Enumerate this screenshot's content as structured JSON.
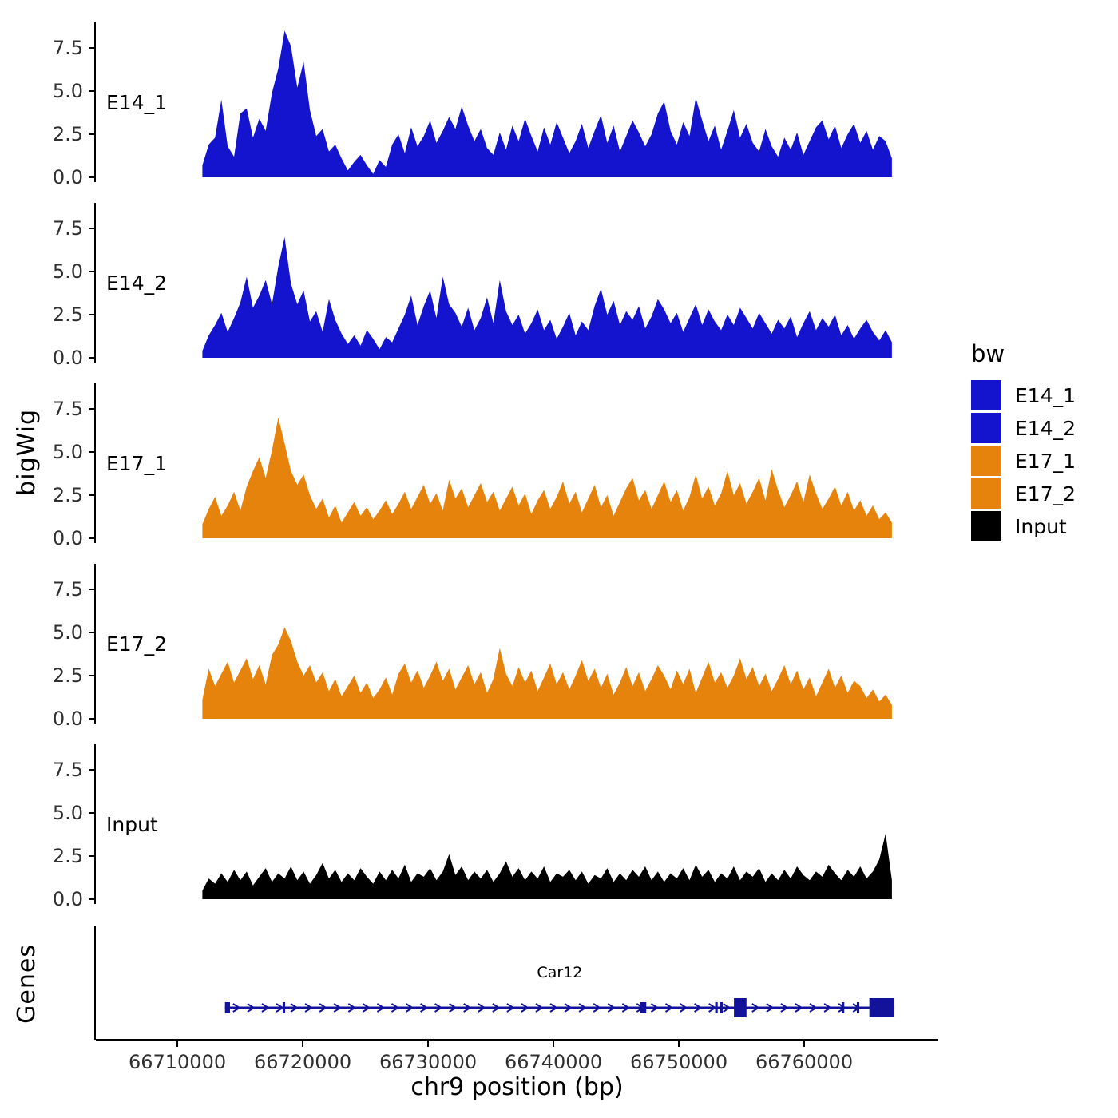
{
  "figure": {
    "y_axis_title": "bigWig",
    "genes_axis_title": "Genes",
    "x_axis_title": "chr9 position (bp)",
    "background": "#ffffff"
  },
  "legend": {
    "title": "bw",
    "items": [
      {
        "label": "E14_1",
        "color": "#1414CE"
      },
      {
        "label": "E14_2",
        "color": "#1414CE"
      },
      {
        "label": "E17_1",
        "color": "#E6830C"
      },
      {
        "label": "E17_2",
        "color": "#E6830C"
      },
      {
        "label": "Input",
        "color": "#000000"
      }
    ]
  },
  "chart_data": {
    "type": "area",
    "title": "",
    "xlabel": "chr9 position (bp)",
    "ylabel": "bigWig",
    "x_range": [
      66703500,
      66770700
    ],
    "data_range": [
      66712000,
      66767000
    ],
    "x_ticks": [
      66710000,
      66720000,
      66730000,
      66740000,
      66750000,
      66760000
    ],
    "y_ticks": [
      0.0,
      2.5,
      5.0,
      7.5
    ],
    "y_max": 9,
    "grid": false,
    "legend_position": "right",
    "tracks": [
      {
        "name": "E14_1",
        "color": "#1414CE",
        "values": [
          0.7,
          1.9,
          2.3,
          4.5,
          1.8,
          1.2,
          3.7,
          4.0,
          2.3,
          3.4,
          2.7,
          4.9,
          6.3,
          8.5,
          7.6,
          5.2,
          6.7,
          3.9,
          2.4,
          2.8,
          1.5,
          1.9,
          1.1,
          0.4,
          0.9,
          1.3,
          0.7,
          0.2,
          1.0,
          0.6,
          1.9,
          2.5,
          1.4,
          2.9,
          1.8,
          2.4,
          3.3,
          2.0,
          2.7,
          3.5,
          2.8,
          4.1,
          3.0,
          2.1,
          2.8,
          1.7,
          1.3,
          2.6,
          1.6,
          3.0,
          2.1,
          3.4,
          2.4,
          1.5,
          2.9,
          1.9,
          3.2,
          2.3,
          1.4,
          2.1,
          3.1,
          1.7,
          2.7,
          3.6,
          2.0,
          3.0,
          1.5,
          2.4,
          3.3,
          2.6,
          1.8,
          2.5,
          3.7,
          4.4,
          2.7,
          1.9,
          3.2,
          2.4,
          4.6,
          3.3,
          2.1,
          3.0,
          1.6,
          2.7,
          3.9,
          2.3,
          3.1,
          2.0,
          1.5,
          2.8,
          1.8,
          1.2,
          2.3,
          1.6,
          2.6,
          1.3,
          2.1,
          2.9,
          3.3,
          2.2,
          3.0,
          1.7,
          2.5,
          3.1,
          2.0,
          2.7,
          1.6,
          2.4,
          2.1,
          1.1
        ]
      },
      {
        "name": "E14_2",
        "color": "#1414CE",
        "values": [
          0.4,
          1.3,
          1.9,
          2.6,
          1.5,
          2.3,
          3.2,
          4.7,
          2.9,
          3.6,
          4.5,
          3.1,
          5.3,
          7.0,
          4.3,
          3.1,
          3.9,
          2.1,
          2.7,
          1.5,
          3.4,
          2.2,
          1.4,
          0.8,
          1.3,
          0.7,
          1.6,
          1.1,
          0.5,
          1.2,
          0.9,
          1.7,
          2.5,
          3.6,
          1.9,
          3.0,
          3.9,
          2.3,
          4.7,
          3.1,
          2.6,
          1.8,
          2.9,
          1.6,
          2.3,
          3.5,
          2.0,
          4.5,
          2.7,
          1.9,
          2.5,
          1.4,
          2.0,
          2.8,
          1.6,
          2.2,
          1.1,
          1.8,
          2.6,
          1.3,
          2.1,
          1.6,
          3.0,
          4.0,
          2.5,
          3.3,
          1.9,
          2.7,
          2.2,
          3.0,
          1.7,
          2.4,
          3.4,
          2.8,
          2.0,
          2.6,
          1.5,
          2.3,
          3.1,
          1.9,
          2.8,
          2.1,
          1.6,
          2.5,
          1.9,
          2.9,
          2.3,
          1.7,
          2.6,
          2.0,
          1.4,
          2.2,
          1.7,
          2.4,
          1.2,
          2.0,
          2.7,
          1.6,
          2.3,
          1.8,
          2.5,
          1.3,
          1.9,
          1.1,
          1.7,
          2.2,
          1.5,
          1.0,
          1.6,
          0.9
        ]
      },
      {
        "name": "E17_1",
        "color": "#E6830C",
        "values": [
          0.8,
          1.7,
          2.4,
          1.3,
          1.9,
          2.7,
          1.6,
          3.0,
          3.9,
          4.7,
          3.5,
          5.1,
          7.0,
          5.5,
          3.9,
          3.1,
          3.7,
          2.5,
          1.7,
          2.3,
          1.2,
          1.9,
          0.9,
          1.5,
          2.1,
          1.3,
          1.8,
          1.1,
          1.6,
          2.2,
          1.4,
          2.0,
          2.7,
          1.7,
          2.4,
          3.1,
          2.0,
          2.6,
          1.6,
          3.4,
          2.3,
          2.9,
          1.8,
          2.5,
          3.2,
          2.1,
          2.7,
          1.6,
          2.3,
          3.0,
          1.9,
          2.6,
          1.4,
          2.2,
          2.8,
          1.7,
          2.4,
          3.3,
          2.0,
          2.7,
          1.5,
          2.3,
          3.1,
          1.8,
          2.5,
          1.3,
          2.1,
          2.9,
          3.5,
          2.2,
          2.8,
          1.7,
          2.5,
          3.3,
          2.1,
          2.8,
          1.6,
          2.4,
          3.7,
          2.3,
          3.0,
          1.9,
          2.6,
          3.9,
          2.5,
          3.2,
          2.0,
          2.7,
          3.5,
          2.2,
          4.0,
          2.8,
          1.8,
          2.5,
          3.3,
          2.1,
          3.7,
          2.6,
          1.7,
          2.3,
          3.0,
          1.9,
          2.7,
          1.6,
          2.2,
          1.3,
          1.9,
          1.1,
          1.5,
          0.9
        ]
      },
      {
        "name": "E17_2",
        "color": "#E6830C",
        "values": [
          1.1,
          2.9,
          1.9,
          2.6,
          3.3,
          2.1,
          2.8,
          3.5,
          2.3,
          3.1,
          2.0,
          3.7,
          4.3,
          5.3,
          4.5,
          3.3,
          2.5,
          3.1,
          2.1,
          2.7,
          1.6,
          2.3,
          1.3,
          1.9,
          2.5,
          1.5,
          2.1,
          1.2,
          1.7,
          2.4,
          1.4,
          2.6,
          3.2,
          2.1,
          2.8,
          1.8,
          2.5,
          3.3,
          2.2,
          2.9,
          1.7,
          2.4,
          3.1,
          2.0,
          2.7,
          1.5,
          2.3,
          4.1,
          2.6,
          1.9,
          3.0,
          2.1,
          2.8,
          1.6,
          2.4,
          3.2,
          2.0,
          2.7,
          1.7,
          2.5,
          3.4,
          2.2,
          2.9,
          1.8,
          2.6,
          1.4,
          2.1,
          3.0,
          1.9,
          2.7,
          1.6,
          2.3,
          3.1,
          2.5,
          1.7,
          2.8,
          2.0,
          2.9,
          1.5,
          2.4,
          3.3,
          2.1,
          2.7,
          1.8,
          2.5,
          3.5,
          2.3,
          3.0,
          1.9,
          2.6,
          1.6,
          2.3,
          3.1,
          2.0,
          2.8,
          1.7,
          2.4,
          1.3,
          2.1,
          2.9,
          1.8,
          2.5,
          1.5,
          2.2,
          1.9,
          1.2,
          1.7,
          1.0,
          1.4,
          0.8
        ]
      },
      {
        "name": "Input",
        "color": "#000000",
        "values": [
          0.5,
          1.2,
          0.9,
          1.5,
          1.0,
          1.7,
          1.1,
          1.6,
          0.8,
          1.3,
          1.8,
          1.0,
          1.5,
          1.2,
          1.9,
          1.1,
          1.6,
          0.9,
          1.4,
          2.1,
          1.2,
          1.7,
          1.0,
          1.5,
          1.1,
          1.8,
          1.3,
          0.9,
          1.6,
          1.1,
          1.7,
          1.2,
          2.0,
          1.0,
          1.5,
          1.3,
          1.8,
          1.1,
          1.6,
          2.6,
          1.4,
          1.9,
          1.1,
          1.6,
          1.2,
          1.7,
          1.0,
          1.5,
          2.2,
          1.3,
          1.8,
          1.1,
          1.6,
          1.2,
          1.9,
          1.0,
          1.5,
          1.3,
          1.7,
          1.1,
          1.6,
          0.9,
          1.4,
          1.2,
          1.8,
          1.0,
          1.5,
          1.1,
          1.7,
          1.3,
          1.9,
          1.1,
          1.6,
          1.0,
          1.5,
          1.2,
          1.8,
          1.1,
          2.0,
          1.3,
          1.7,
          1.0,
          1.5,
          1.2,
          1.9,
          1.1,
          1.6,
          1.3,
          1.8,
          1.0,
          1.5,
          1.1,
          1.7,
          1.2,
          1.9,
          1.4,
          1.1,
          1.6,
          1.3,
          2.0,
          1.5,
          1.1,
          1.7,
          1.3,
          1.9,
          1.2,
          1.6,
          2.3,
          3.8,
          1.1
        ]
      }
    ],
    "gene_track": {
      "panel_label": "Genes",
      "gene": {
        "name": "Car12",
        "strand": "+",
        "start": 66713800,
        "end": 66767200,
        "color": "#12129B",
        "exons": [
          [
            66713800,
            66714200,
            1
          ],
          [
            66718400,
            66718600,
            1
          ],
          [
            66746900,
            66747400,
            1
          ],
          [
            66752900,
            66753100,
            1
          ],
          [
            66753300,
            66753500,
            1
          ],
          [
            66754400,
            66755400,
            2
          ],
          [
            66763000,
            66763200,
            1
          ],
          [
            66764200,
            66764400,
            1
          ],
          [
            66765200,
            66767200,
            2
          ]
        ]
      }
    }
  }
}
